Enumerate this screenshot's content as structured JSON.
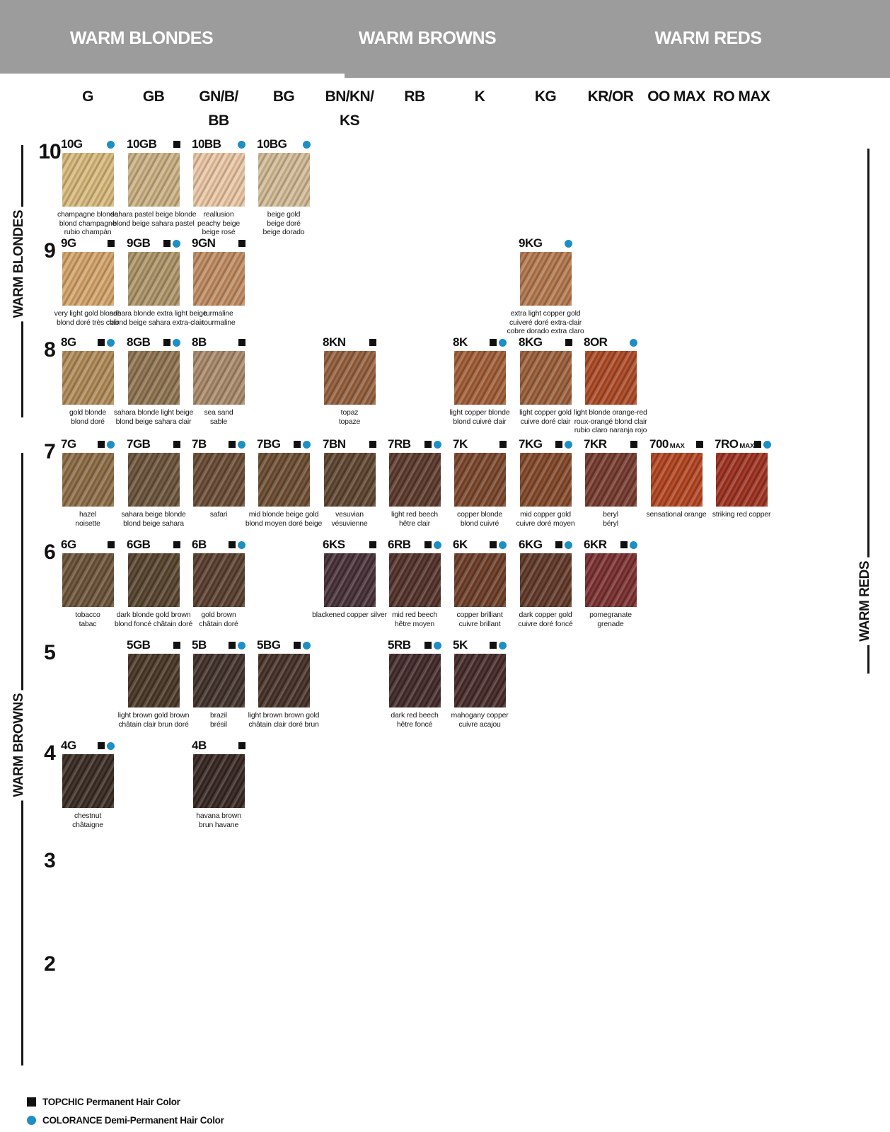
{
  "header": {
    "sections": [
      {
        "label": "WARM BLONDES"
      },
      {
        "label": "WARM BROWNS"
      },
      {
        "label": "WARM REDS"
      }
    ]
  },
  "side_labels": {
    "left_top": "WARM BLONDES",
    "left_bottom": "WARM BROWNS",
    "right": "WARM REDS"
  },
  "columns": [
    {
      "label": "G",
      "label2": ""
    },
    {
      "label": "GB",
      "label2": ""
    },
    {
      "label": "GN/B/",
      "label2": "BB"
    },
    {
      "label": "BG",
      "label2": ""
    },
    {
      "label": "BN/KN/",
      "label2": "KS"
    },
    {
      "label": "RB",
      "label2": ""
    },
    {
      "label": "K",
      "label2": ""
    },
    {
      "label": "KG",
      "label2": ""
    },
    {
      "label": "KR/OR",
      "label2": ""
    },
    {
      "label": "OO MAX",
      "label2": ""
    },
    {
      "label": "RO MAX",
      "label2": ""
    }
  ],
  "rows": [
    "10",
    "9",
    "8",
    "7",
    "6",
    "5",
    "4",
    "3",
    "2"
  ],
  "colors": {
    "accent_blue": "#1d8fc4",
    "marker_black": "#111111",
    "band_gray": "#9c9c9c"
  },
  "legend": {
    "items": [
      {
        "marker": "square",
        "label": "TOPCHIC Permanent Hair Color"
      },
      {
        "marker": "dot",
        "label": "COLORANCE Demi-Permanent Hair Color"
      }
    ]
  },
  "cells": [
    {
      "code": "10G",
      "suffix": "",
      "row": "10",
      "col": 0,
      "topchic": false,
      "colorance": true,
      "color": "#d9ba7d",
      "names": [
        "champagne blonde",
        "blond champagne",
        "rubio champán"
      ]
    },
    {
      "code": "10GB",
      "suffix": "",
      "row": "10",
      "col": 1,
      "topchic": true,
      "colorance": false,
      "color": "#ccb184",
      "names": [
        "sahara pastel beige blonde",
        "blond beige sahara pastel"
      ]
    },
    {
      "code": "10BB",
      "suffix": "",
      "row": "10",
      "col": 2,
      "topchic": false,
      "colorance": true,
      "color": "#ecc8a6",
      "names": [
        "reallusion",
        "peachy beige",
        "beige rosé"
      ]
    },
    {
      "code": "10BG",
      "suffix": "",
      "row": "10",
      "col": 3,
      "topchic": false,
      "colorance": true,
      "color": "#d3bc97",
      "names": [
        "beige gold",
        "beige doré",
        "beige dorado"
      ]
    },
    {
      "code": "9G",
      "suffix": "",
      "row": "9",
      "col": 0,
      "topchic": true,
      "colorance": false,
      "color": "#d5a56b",
      "names": [
        "very light gold blonde",
        "blond doré très clair"
      ]
    },
    {
      "code": "9GB",
      "suffix": "",
      "row": "9",
      "col": 1,
      "topchic": true,
      "colorance": true,
      "color": "#ae9569",
      "names": [
        "sahara blonde extra light beige",
        "blond beige sahara extra-clair"
      ]
    },
    {
      "code": "9GN",
      "suffix": "",
      "row": "9",
      "col": 2,
      "topchic": true,
      "colorance": false,
      "color": "#c18d63",
      "names": [
        "turmaline",
        "tourmaline"
      ]
    },
    {
      "code": "9KG",
      "suffix": "",
      "row": "9",
      "col": 7,
      "topchic": false,
      "colorance": true,
      "color": "#b5794f",
      "names": [
        "extra light copper gold",
        "cuiveré doré extra-clair",
        "cobre dorado extra claro"
      ]
    },
    {
      "code": "8G",
      "suffix": "",
      "row": "8",
      "col": 0,
      "topchic": true,
      "colorance": true,
      "color": "#b18b59",
      "names": [
        "gold blonde",
        "blond doré"
      ]
    },
    {
      "code": "8GB",
      "suffix": "",
      "row": "8",
      "col": 1,
      "topchic": true,
      "colorance": true,
      "color": "#8f7450",
      "names": [
        "sahara blonde light beige",
        "blond beige sahara clair"
      ]
    },
    {
      "code": "8B",
      "suffix": "",
      "row": "8",
      "col": 2,
      "topchic": true,
      "colorance": false,
      "color": "#aa8b6c",
      "names": [
        "sea sand",
        "sable"
      ]
    },
    {
      "code": "8KN",
      "suffix": "",
      "row": "8",
      "col": 4,
      "topchic": true,
      "colorance": false,
      "color": "#96613f",
      "names": [
        "topaz",
        "topaze"
      ]
    },
    {
      "code": "8K",
      "suffix": "",
      "row": "8",
      "col": 6,
      "topchic": true,
      "colorance": true,
      "color": "#a25e37",
      "names": [
        "light copper blonde",
        "blond cuivré clair"
      ]
    },
    {
      "code": "8KG",
      "suffix": "",
      "row": "8",
      "col": 7,
      "topchic": true,
      "colorance": false,
      "color": "#9d603b",
      "names": [
        "light copper gold",
        "cuivre doré clair"
      ]
    },
    {
      "code": "8OR",
      "suffix": "",
      "row": "8",
      "col": 8,
      "topchic": false,
      "colorance": true,
      "color": "#ae4a26",
      "names": [
        "light blonde orange-red",
        "roux-orangé blond clair",
        "rubio claro naranja rojo"
      ]
    },
    {
      "code": "7G",
      "suffix": "",
      "row": "7",
      "col": 0,
      "topchic": true,
      "colorance": true,
      "color": "#8e6d47",
      "names": [
        "hazel",
        "noisette"
      ]
    },
    {
      "code": "7GB",
      "suffix": "",
      "row": "7",
      "col": 1,
      "topchic": true,
      "colorance": false,
      "color": "#6c543b",
      "names": [
        "sahara beige blonde",
        "blond beige sahara"
      ]
    },
    {
      "code": "7B",
      "suffix": "",
      "row": "7",
      "col": 2,
      "topchic": true,
      "colorance": true,
      "color": "#6a4c35",
      "names": [
        "safari"
      ]
    },
    {
      "code": "7BG",
      "suffix": "",
      "row": "7",
      "col": 3,
      "topchic": true,
      "colorance": true,
      "color": "#6d4e32",
      "names": [
        "mid blonde beige gold",
        "blond moyen doré beige"
      ]
    },
    {
      "code": "7BN",
      "suffix": "",
      "row": "7",
      "col": 4,
      "topchic": true,
      "colorance": false,
      "color": "#5f4530",
      "names": [
        "vesuvian",
        "vésuvienne"
      ]
    },
    {
      "code": "7RB",
      "suffix": "",
      "row": "7",
      "col": 5,
      "topchic": true,
      "colorance": true,
      "color": "#5d3a2c",
      "names": [
        "light red beech",
        "hêtre clair"
      ]
    },
    {
      "code": "7K",
      "suffix": "",
      "row": "7",
      "col": 6,
      "topchic": true,
      "colorance": false,
      "color": "#7c472c",
      "names": [
        "copper blonde",
        "blond cuivré"
      ]
    },
    {
      "code": "7KG",
      "suffix": "",
      "row": "7",
      "col": 7,
      "topchic": true,
      "colorance": true,
      "color": "#84492a",
      "names": [
        "mid copper gold",
        "cuivre doré moyen"
      ]
    },
    {
      "code": "7KR",
      "suffix": "",
      "row": "7",
      "col": 8,
      "topchic": true,
      "colorance": false,
      "color": "#773b2e",
      "names": [
        "beryl",
        "béryl"
      ]
    },
    {
      "code": "700",
      "suffix": "MAX",
      "row": "7",
      "col": 9,
      "topchic": true,
      "colorance": false,
      "color": "#b44521",
      "names": [
        "sensational orange"
      ]
    },
    {
      "code": "7RO",
      "suffix": "MAX",
      "row": "7",
      "col": 10,
      "topchic": true,
      "colorance": true,
      "color": "#9f3221",
      "names": [
        "striking red copper"
      ]
    },
    {
      "code": "6G",
      "suffix": "",
      "row": "6",
      "col": 0,
      "topchic": true,
      "colorance": false,
      "color": "#6c5339",
      "names": [
        "tobacco",
        "tabac"
      ]
    },
    {
      "code": "6GB",
      "suffix": "",
      "row": "6",
      "col": 1,
      "topchic": true,
      "colorance": false,
      "color": "#58442e",
      "names": [
        "dark blonde gold brown",
        "blond foncé châtain doré"
      ]
    },
    {
      "code": "6B",
      "suffix": "",
      "row": "6",
      "col": 2,
      "topchic": true,
      "colorance": true,
      "color": "#5a3f2e",
      "names": [
        "gold brown",
        "châtain doré"
      ]
    },
    {
      "code": "6KS",
      "suffix": "",
      "row": "6",
      "col": 4,
      "topchic": true,
      "colorance": false,
      "color": "#473138",
      "names": [
        "blackened copper silver"
      ]
    },
    {
      "code": "6RB",
      "suffix": "",
      "row": "6",
      "col": 5,
      "topchic": true,
      "colorance": true,
      "color": "#54322b",
      "names": [
        "mid red beech",
        "hêtre moyen"
      ]
    },
    {
      "code": "6K",
      "suffix": "",
      "row": "6",
      "col": 6,
      "topchic": true,
      "colorance": true,
      "color": "#6e3e28",
      "names": [
        "copper brilliant",
        "cuivre brillant"
      ]
    },
    {
      "code": "6KG",
      "suffix": "",
      "row": "6",
      "col": 7,
      "topchic": true,
      "colorance": true,
      "color": "#623929",
      "names": [
        "dark copper gold",
        "cuivre doré foncé"
      ]
    },
    {
      "code": "6KR",
      "suffix": "",
      "row": "6",
      "col": 8,
      "topchic": true,
      "colorance": true,
      "color": "#7c3030",
      "names": [
        "pomegranate",
        "grenade"
      ]
    },
    {
      "code": "5GB",
      "suffix": "",
      "row": "5",
      "col": 1,
      "topchic": true,
      "colorance": false,
      "color": "#493827",
      "names": [
        "light brown gold brown",
        "châtain clair brun doré"
      ]
    },
    {
      "code": "5B",
      "suffix": "",
      "row": "5",
      "col": 2,
      "topchic": true,
      "colorance": true,
      "color": "#41312a",
      "names": [
        "brazil",
        "brésil"
      ]
    },
    {
      "code": "5BG",
      "suffix": "",
      "row": "5",
      "col": 3,
      "topchic": true,
      "colorance": true,
      "color": "#463227",
      "names": [
        "light brown brown gold",
        "châtain clair doré brun"
      ]
    },
    {
      "code": "5RB",
      "suffix": "",
      "row": "5",
      "col": 5,
      "topchic": true,
      "colorance": true,
      "color": "#432a2a",
      "names": [
        "dark red beech",
        "hêtre foncé"
      ]
    },
    {
      "code": "5K",
      "suffix": "",
      "row": "5",
      "col": 6,
      "topchic": true,
      "colorance": true,
      "color": "#462b29",
      "names": [
        "mahogany copper",
        "cuivre acajou"
      ]
    },
    {
      "code": "4G",
      "suffix": "",
      "row": "4",
      "col": 0,
      "topchic": true,
      "colorance": true,
      "color": "#3a2c23",
      "names": [
        "chestnut",
        "châtaigne"
      ]
    },
    {
      "code": "4B",
      "suffix": "",
      "row": "4",
      "col": 2,
      "topchic": true,
      "colorance": false,
      "color": "#372722",
      "names": [
        "havana brown",
        "brun havane"
      ]
    }
  ]
}
